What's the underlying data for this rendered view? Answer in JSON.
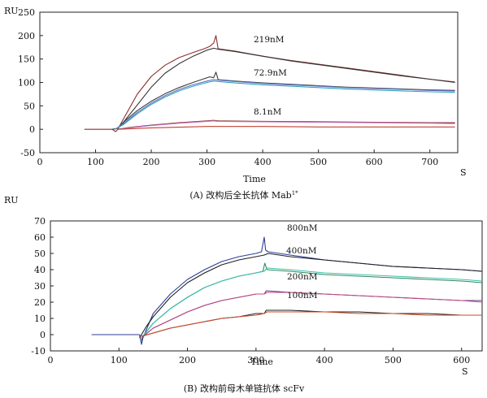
{
  "chart_data": [
    {
      "type": "line",
      "panel_caption": "(A) 改构后全长抗体 Mab",
      "panel_caption_sup": "1*",
      "xlabel": "Time",
      "x_unit": "S",
      "ylabel": "RU",
      "xlim": [
        0,
        750
      ],
      "ylim": [
        -50,
        250
      ],
      "x_ticks": [
        0,
        100,
        200,
        300,
        400,
        500,
        600,
        700
      ],
      "y_ticks": [
        -50,
        0,
        50,
        100,
        150,
        200,
        250
      ],
      "grid": false,
      "series": [
        {
          "name": "219nM",
          "color": "#8a2e2e",
          "x": [
            80,
            130,
            136,
            140,
            150,
            175,
            200,
            225,
            250,
            275,
            295,
            305,
            312,
            316,
            320,
            350,
            400,
            450,
            500,
            550,
            600,
            650,
            700,
            745
          ],
          "y": [
            0,
            0,
            -5,
            0,
            22,
            75,
            113,
            137,
            153,
            164,
            172,
            177,
            184,
            200,
            172,
            167,
            156,
            147,
            139,
            131,
            123,
            115,
            107,
            101
          ]
        },
        {
          "name": "219nM",
          "color": "#333333",
          "x": [
            130,
            140,
            150,
            175,
            200,
            225,
            250,
            275,
            300,
            312,
            320,
            350,
            400,
            450,
            500,
            550,
            600,
            650,
            700,
            745
          ],
          "y": [
            0,
            2,
            15,
            52,
            90,
            120,
            140,
            156,
            169,
            173,
            171,
            166,
            156,
            146,
            138,
            130,
            122,
            114,
            107,
            100
          ]
        },
        {
          "name": "72.9nM",
          "color": "#3a3a3a",
          "x": [
            135,
            140,
            150,
            175,
            200,
            225,
            250,
            275,
            295,
            305,
            312,
            316,
            320,
            350,
            400,
            450,
            500,
            550,
            600,
            650,
            700,
            745
          ],
          "y": [
            0,
            3,
            15,
            40,
            60,
            76,
            89,
            100,
            108,
            112,
            110,
            122,
            106,
            103,
            99,
            96,
            93,
            90,
            88,
            86,
            84,
            83
          ]
        },
        {
          "name": "72.9nM",
          "color": "#6070c0",
          "x": [
            135,
            150,
            175,
            200,
            225,
            250,
            275,
            300,
            312,
            320,
            350,
            400,
            450,
            500,
            550,
            600,
            650,
            700,
            745
          ],
          "y": [
            0,
            12,
            36,
            56,
            72,
            85,
            95,
            103,
            106,
            105,
            102,
            98,
            95,
            92,
            89,
            87,
            85,
            83,
            82
          ]
        },
        {
          "name": "72.9nM",
          "color": "#2aa0c0",
          "x": [
            135,
            150,
            175,
            200,
            225,
            250,
            275,
            300,
            312,
            320,
            350,
            400,
            450,
            500,
            550,
            600,
            650,
            700,
            745
          ],
          "y": [
            0,
            10,
            33,
            53,
            69,
            82,
            92,
            100,
            103,
            102,
            99,
            95,
            92,
            89,
            86,
            84,
            82,
            80,
            79
          ]
        },
        {
          "name": "8.1nM",
          "color": "#8a2e2e",
          "x": [
            140,
            160,
            200,
            250,
            300,
            312,
            320,
            400,
            500,
            600,
            700,
            745
          ],
          "y": [
            0,
            4,
            9,
            14,
            18,
            19,
            18,
            17,
            16,
            15,
            14,
            14
          ]
        },
        {
          "name": "8.1nM",
          "color": "#c070c0",
          "x": [
            140,
            160,
            200,
            250,
            300,
            312,
            320,
            400,
            500,
            600,
            700,
            745
          ],
          "y": [
            0,
            3,
            8,
            13,
            17,
            18,
            17,
            16,
            15,
            14,
            13,
            12
          ]
        },
        {
          "name": "8.1nM",
          "color": "#c04030",
          "x": [
            140,
            200,
            300,
            320,
            400,
            500,
            600,
            700,
            745
          ],
          "y": [
            0,
            3,
            6,
            6,
            6,
            5,
            5,
            5,
            5
          ]
        }
      ],
      "annotations": [
        "219nM",
        "72.9nM",
        "8.1nM"
      ]
    },
    {
      "type": "line",
      "panel_caption": "(B) 改构前母木单链抗体 scFv",
      "xlabel": "Time",
      "x_unit": "S",
      "ylabel": "RU",
      "xlim": [
        0,
        630
      ],
      "ylim": [
        -10,
        70
      ],
      "x_ticks": [
        0,
        100,
        200,
        300,
        400,
        500,
        600
      ],
      "y_ticks": [
        -10,
        0,
        10,
        20,
        30,
        40,
        50,
        60,
        70
      ],
      "grid": false,
      "series": [
        {
          "name": "800nM",
          "color": "#2c3f9a",
          "x": [
            60,
            90,
            130,
            133,
            135,
            150,
            175,
            200,
            225,
            250,
            275,
            300,
            308,
            312,
            314,
            318,
            350,
            400,
            450,
            500,
            550,
            600,
            630
          ],
          "y": [
            0,
            0,
            0,
            -6,
            -2,
            13,
            25,
            34,
            40,
            45,
            48,
            50,
            51,
            60,
            52,
            51,
            49,
            46,
            44,
            42,
            41,
            40,
            39
          ]
        },
        {
          "name": "800nM",
          "color": "#202020",
          "x": [
            130,
            140,
            150,
            175,
            200,
            225,
            250,
            275,
            300,
            312,
            318,
            350,
            400,
            450,
            500,
            550,
            600,
            630
          ],
          "y": [
            -2,
            5,
            11,
            23,
            32,
            38,
            43,
            46,
            48,
            49,
            50,
            48,
            46,
            44,
            42,
            41,
            40,
            39
          ]
        },
        {
          "name": "400nM",
          "color": "#2e8a5a",
          "x": [
            133,
            135,
            150,
            175,
            200,
            225,
            250,
            275,
            300,
            310,
            313,
            316,
            350,
            400,
            450,
            500,
            550,
            600,
            630
          ],
          "y": [
            -4,
            -1,
            7,
            16,
            23,
            29,
            33,
            36,
            38,
            39,
            44,
            40,
            39,
            37,
            36,
            35,
            34,
            33,
            32
          ]
        },
        {
          "name": "400nM",
          "color": "#3cbfb0",
          "x": [
            133,
            150,
            175,
            200,
            225,
            250,
            275,
            300,
            312,
            316,
            350,
            400,
            450,
            500,
            550,
            600,
            630
          ],
          "y": [
            -2,
            7,
            16,
            23,
            29,
            33,
            36,
            38,
            39,
            41,
            40,
            38,
            37,
            36,
            35,
            34,
            33
          ]
        },
        {
          "name": "200nM",
          "color": "#5b3f8a",
          "x": [
            133,
            135,
            150,
            175,
            200,
            225,
            250,
            275,
            300,
            312,
            315,
            350,
            400,
            450,
            500,
            550,
            600,
            630
          ],
          "y": [
            -3,
            -1,
            4,
            9,
            14,
            18,
            21,
            23,
            25,
            25,
            27,
            26,
            25,
            24,
            23,
            22,
            21,
            21
          ]
        },
        {
          "name": "200nM",
          "color": "#c04a80",
          "x": [
            133,
            150,
            175,
            200,
            225,
            250,
            275,
            300,
            312,
            316,
            350,
            400,
            450,
            500,
            550,
            600,
            630
          ],
          "y": [
            -2,
            4,
            9,
            14,
            18,
            21,
            23,
            25,
            25,
            26,
            26,
            25,
            24,
            23,
            22,
            21,
            20
          ]
        },
        {
          "name": "100nM",
          "color": "#202020",
          "x": [
            133,
            150,
            175,
            200,
            225,
            250,
            275,
            300,
            312,
            315,
            350,
            400,
            450,
            500,
            550,
            600,
            630
          ],
          "y": [
            -1,
            1,
            4,
            6,
            8,
            10,
            11,
            13,
            13,
            15,
            15,
            14,
            14,
            13,
            13,
            12,
            12
          ]
        },
        {
          "name": "100nM",
          "color": "#d04a2a",
          "x": [
            133,
            150,
            175,
            200,
            225,
            250,
            275,
            300,
            312,
            316,
            350,
            400,
            450,
            500,
            550,
            600,
            630
          ],
          "y": [
            -1,
            1,
            4,
            6,
            8,
            10,
            11,
            12,
            13,
            14,
            14,
            14,
            13,
            13,
            12,
            12,
            12
          ]
        }
      ],
      "annotations": [
        "800nM",
        "400nM",
        "200nM",
        "100nM"
      ]
    }
  ]
}
